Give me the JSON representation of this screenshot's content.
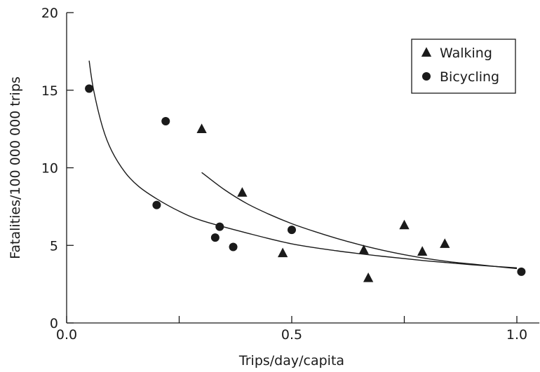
{
  "chart_data": {
    "type": "scatter",
    "xlabel": "Trips/day/capita",
    "ylabel": "Fatalities/100 000 000 trips",
    "xlim": [
      0.0,
      1.05
    ],
    "ylim": [
      0,
      20
    ],
    "x_ticks": [
      0.0,
      0.25,
      0.5,
      0.75,
      1.0
    ],
    "x_tick_labels": [
      "0.0",
      "",
      "0.5",
      "",
      "1.0"
    ],
    "y_ticks": [
      0,
      5,
      10,
      15,
      20
    ],
    "y_tick_labels": [
      "0",
      "5",
      "10",
      "15",
      "20"
    ],
    "grid": false,
    "legend_position": "top-right",
    "series": [
      {
        "name": "Walking",
        "marker": "triangle",
        "points": [
          {
            "x": 0.3,
            "y": 12.5
          },
          {
            "x": 0.39,
            "y": 8.4
          },
          {
            "x": 0.48,
            "y": 4.5
          },
          {
            "x": 0.66,
            "y": 4.7
          },
          {
            "x": 0.67,
            "y": 2.9
          },
          {
            "x": 0.75,
            "y": 6.3
          },
          {
            "x": 0.79,
            "y": 4.6
          },
          {
            "x": 0.84,
            "y": 5.1
          }
        ],
        "trend": [
          {
            "x": 0.3,
            "y": 9.7
          },
          {
            "x": 0.35,
            "y": 8.6
          },
          {
            "x": 0.4,
            "y": 7.7
          },
          {
            "x": 0.45,
            "y": 7.0
          },
          {
            "x": 0.5,
            "y": 6.4
          },
          {
            "x": 0.55,
            "y": 5.9
          },
          {
            "x": 0.6,
            "y": 5.45
          },
          {
            "x": 0.65,
            "y": 5.05
          },
          {
            "x": 0.7,
            "y": 4.7
          },
          {
            "x": 0.75,
            "y": 4.4
          },
          {
            "x": 0.8,
            "y": 4.15
          },
          {
            "x": 0.85,
            "y": 3.95
          },
          {
            "x": 0.9,
            "y": 3.8
          },
          {
            "x": 0.95,
            "y": 3.65
          },
          {
            "x": 1.0,
            "y": 3.5
          }
        ]
      },
      {
        "name": "Bicycling",
        "marker": "circle",
        "points": [
          {
            "x": 0.05,
            "y": 15.1
          },
          {
            "x": 0.22,
            "y": 13.0
          },
          {
            "x": 0.2,
            "y": 7.6
          },
          {
            "x": 0.34,
            "y": 6.2
          },
          {
            "x": 0.33,
            "y": 5.5
          },
          {
            "x": 0.37,
            "y": 4.9
          },
          {
            "x": 0.5,
            "y": 6.0
          },
          {
            "x": 1.01,
            "y": 3.3
          }
        ],
        "trend": [
          {
            "x": 0.05,
            "y": 16.9
          },
          {
            "x": 0.06,
            "y": 15.0
          },
          {
            "x": 0.08,
            "y": 12.6
          },
          {
            "x": 0.1,
            "y": 11.1
          },
          {
            "x": 0.13,
            "y": 9.7
          },
          {
            "x": 0.16,
            "y": 8.8
          },
          {
            "x": 0.2,
            "y": 8.0
          },
          {
            "x": 0.25,
            "y": 7.2
          },
          {
            "x": 0.3,
            "y": 6.6
          },
          {
            "x": 0.4,
            "y": 5.8
          },
          {
            "x": 0.5,
            "y": 5.1
          },
          {
            "x": 0.6,
            "y": 4.65
          },
          {
            "x": 0.7,
            "y": 4.3
          },
          {
            "x": 0.8,
            "y": 4.0
          },
          {
            "x": 0.9,
            "y": 3.75
          },
          {
            "x": 1.0,
            "y": 3.55
          }
        ]
      }
    ]
  },
  "colors": {
    "ink": "#1a1a1a",
    "background": "#ffffff"
  }
}
